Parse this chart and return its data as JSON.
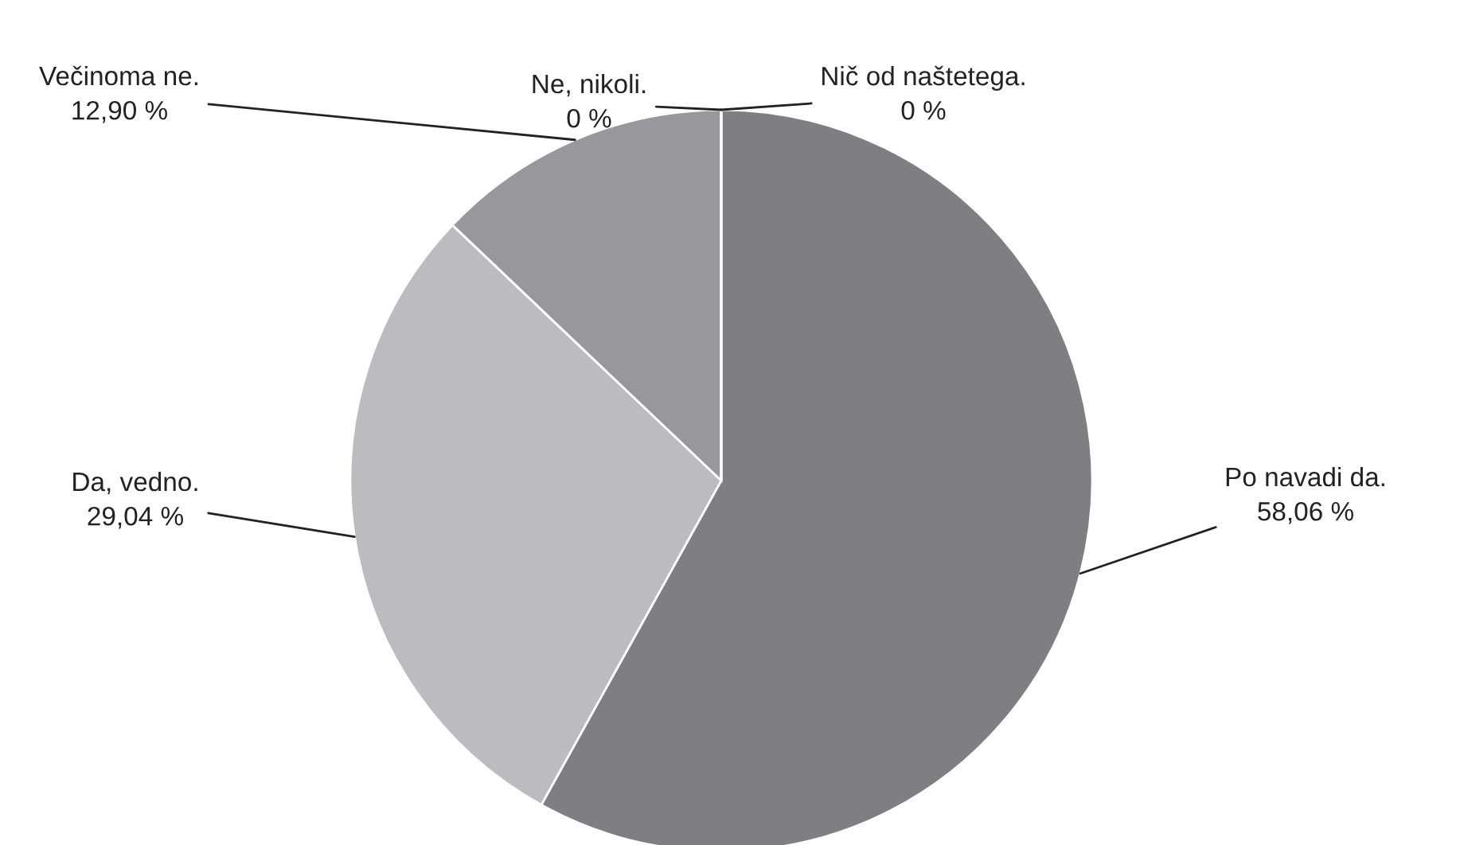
{
  "chart_data": {
    "type": "pie",
    "categories": [
      "Po navadi da.",
      "Da, vedno.",
      "Večinoma ne.",
      "Ne, nikoli.",
      "Nič od naštetega."
    ],
    "values": [
      58.06,
      29.04,
      12.9,
      0,
      0
    ],
    "value_labels": [
      "58,06 %",
      "29,04 %",
      "12,90 %",
      "0 %",
      "0 %"
    ],
    "colors": [
      "#7f7f83",
      "#bcbcc0",
      "#98989c",
      "#8a8a8e",
      "#a5a5a9"
    ]
  }
}
